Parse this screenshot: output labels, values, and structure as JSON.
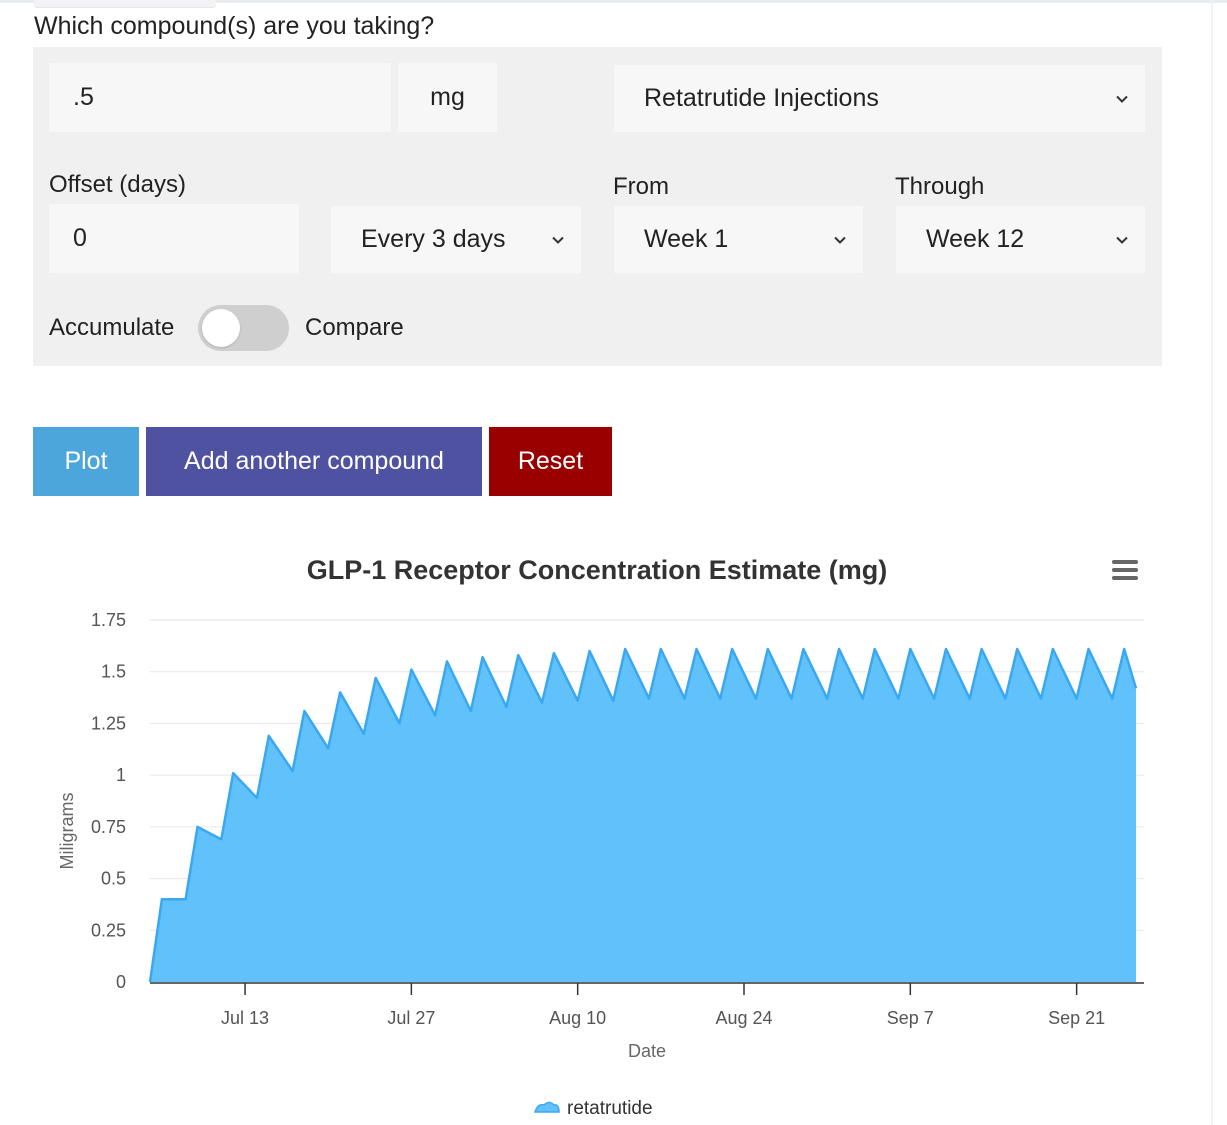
{
  "form": {
    "question": "Which compound(s) are you taking?",
    "dose_value": ".5",
    "dose_unit": "mg",
    "compound": "Retatrutide Injections",
    "offset_label": "Offset (days)",
    "offset_value": "0",
    "frequency": "Every 3 days",
    "from_label": "From",
    "from_value": "Week 1",
    "through_label": "Through",
    "through_value": "Week 12",
    "accumulate_label": "Accumulate",
    "compare_label": "Compare",
    "toggle_on": false
  },
  "buttons": {
    "plot": "Plot",
    "add_compound": "Add another compound",
    "reset": "Reset"
  },
  "icons": {
    "select_chevron": "chevron-down-icon",
    "chart_menu": "hamburger-menu-icon",
    "legend_marker": "cloud-area-icon"
  },
  "colors": {
    "plot_button": "#4da6db",
    "add_button": "#4f52a0",
    "reset_button": "#990000",
    "series_fill": "#61c1fb",
    "series_line": "#3aa8f0"
  },
  "chart_data": {
    "type": "area",
    "title": "GLP-1 Receptor Concentration Estimate (mg)",
    "xlabel": "Date",
    "ylabel": "Miligrams",
    "ylim": [
      0,
      1.75
    ],
    "yticks": [
      "0",
      "0.25",
      "0.5",
      "0.75",
      "1",
      "1.25",
      "1.5",
      "1.75"
    ],
    "xticks": [
      {
        "date": "2024-07-13",
        "label": "Jul 13"
      },
      {
        "date": "2024-07-27",
        "label": "Jul 27"
      },
      {
        "date": "2024-08-10",
        "label": "Aug 10"
      },
      {
        "date": "2024-08-24",
        "label": "Aug 24"
      },
      {
        "date": "2024-09-07",
        "label": "Sep 7"
      },
      {
        "date": "2024-09-21",
        "label": "Sep 21"
      }
    ],
    "xlim": [
      "2024-07-05",
      "2024-09-29"
    ],
    "grid": true,
    "legend": "bottom-center",
    "series": [
      {
        "name": "retatrutide",
        "points": [
          [
            "2024-07-05",
            0
          ],
          [
            "2024-07-06",
            0.4
          ],
          [
            "2024-07-08",
            0.4
          ],
          [
            "2024-07-08",
            0.4
          ],
          [
            "2024-07-09",
            0.75
          ],
          [
            "2024-07-11",
            0.69
          ],
          [
            "2024-07-11",
            0.69
          ],
          [
            "2024-07-12",
            1.01
          ],
          [
            "2024-07-14",
            0.89
          ],
          [
            "2024-07-14",
            0.89
          ],
          [
            "2024-07-15",
            1.19
          ],
          [
            "2024-07-17",
            1.02
          ],
          [
            "2024-07-17",
            1.02
          ],
          [
            "2024-07-18",
            1.31
          ],
          [
            "2024-07-20",
            1.13
          ],
          [
            "2024-07-20",
            1.13
          ],
          [
            "2024-07-21",
            1.4
          ],
          [
            "2024-07-23",
            1.2
          ],
          [
            "2024-07-23",
            1.2
          ],
          [
            "2024-07-24",
            1.47
          ],
          [
            "2024-07-26",
            1.25
          ],
          [
            "2024-07-26",
            1.25
          ],
          [
            "2024-07-27",
            1.51
          ],
          [
            "2024-07-29",
            1.29
          ],
          [
            "2024-07-29",
            1.29
          ],
          [
            "2024-07-30",
            1.55
          ],
          [
            "2024-08-01",
            1.31
          ],
          [
            "2024-08-01",
            1.31
          ],
          [
            "2024-08-02",
            1.57
          ],
          [
            "2024-08-04",
            1.33
          ],
          [
            "2024-08-04",
            1.33
          ],
          [
            "2024-08-05",
            1.58
          ],
          [
            "2024-08-07",
            1.35
          ],
          [
            "2024-08-07",
            1.35
          ],
          [
            "2024-08-08",
            1.59
          ],
          [
            "2024-08-10",
            1.36
          ],
          [
            "2024-08-10",
            1.36
          ],
          [
            "2024-08-11",
            1.6
          ],
          [
            "2024-08-13",
            1.36
          ],
          [
            "2024-08-13",
            1.36
          ],
          [
            "2024-08-14",
            1.61
          ],
          [
            "2024-08-16",
            1.37
          ],
          [
            "2024-08-16",
            1.37
          ],
          [
            "2024-08-17",
            1.61
          ],
          [
            "2024-08-19",
            1.37
          ],
          [
            "2024-08-19",
            1.37
          ],
          [
            "2024-08-20",
            1.61
          ],
          [
            "2024-08-22",
            1.37
          ],
          [
            "2024-08-22",
            1.37
          ],
          [
            "2024-08-23",
            1.61
          ],
          [
            "2024-08-25",
            1.37
          ],
          [
            "2024-08-25",
            1.37
          ],
          [
            "2024-08-26",
            1.61
          ],
          [
            "2024-08-28",
            1.37
          ],
          [
            "2024-08-28",
            1.37
          ],
          [
            "2024-08-29",
            1.61
          ],
          [
            "2024-08-31",
            1.37
          ],
          [
            "2024-08-31",
            1.37
          ],
          [
            "2024-09-01",
            1.61
          ],
          [
            "2024-09-03",
            1.37
          ],
          [
            "2024-09-03",
            1.37
          ],
          [
            "2024-09-04",
            1.61
          ],
          [
            "2024-09-06",
            1.37
          ],
          [
            "2024-09-06",
            1.37
          ],
          [
            "2024-09-07",
            1.61
          ],
          [
            "2024-09-09",
            1.37
          ],
          [
            "2024-09-09",
            1.37
          ],
          [
            "2024-09-10",
            1.61
          ],
          [
            "2024-09-12",
            1.37
          ],
          [
            "2024-09-12",
            1.37
          ],
          [
            "2024-09-13",
            1.61
          ],
          [
            "2024-09-15",
            1.37
          ],
          [
            "2024-09-15",
            1.37
          ],
          [
            "2024-09-16",
            1.61
          ],
          [
            "2024-09-18",
            1.37
          ],
          [
            "2024-09-18",
            1.37
          ],
          [
            "2024-09-19",
            1.61
          ],
          [
            "2024-09-21",
            1.37
          ],
          [
            "2024-09-21",
            1.37
          ],
          [
            "2024-09-22",
            1.61
          ],
          [
            "2024-09-24",
            1.37
          ],
          [
            "2024-09-24",
            1.37
          ],
          [
            "2024-09-25",
            1.61
          ],
          [
            "2024-09-26",
            1.42
          ]
        ]
      }
    ]
  }
}
